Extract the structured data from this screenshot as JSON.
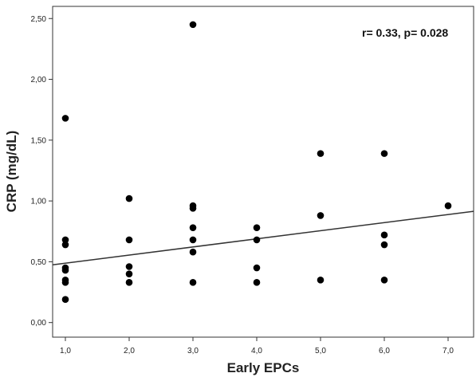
{
  "chart_data": {
    "type": "scatter",
    "xlabel": "Early EPCs",
    "ylabel": "CRP (mg/dL)",
    "annotation": "r= 0.33, p= 0.028",
    "xlim": [
      0.8,
      7.4
    ],
    "ylim": [
      -0.12,
      2.6
    ],
    "x_ticks": [
      1,
      2,
      3,
      4,
      5,
      6,
      7
    ],
    "x_tick_labels": [
      "1,0",
      "2,0",
      "3,0",
      "4,0",
      "5,0",
      "6,0",
      "7,0"
    ],
    "y_ticks": [
      0,
      0.5,
      1.0,
      1.5,
      2.0,
      2.5
    ],
    "y_tick_labels": [
      "0,00",
      "0,50",
      "1,00",
      "1,50",
      "2,00",
      "2,50"
    ],
    "grid": false,
    "marker_color": "#000000",
    "points": [
      {
        "x": 1,
        "y": 1.68
      },
      {
        "x": 1,
        "y": 0.68
      },
      {
        "x": 1,
        "y": 0.64
      },
      {
        "x": 1,
        "y": 0.45
      },
      {
        "x": 1,
        "y": 0.43
      },
      {
        "x": 1,
        "y": 0.35
      },
      {
        "x": 1,
        "y": 0.33
      },
      {
        "x": 1,
        "y": 0.19
      },
      {
        "x": 2,
        "y": 1.02
      },
      {
        "x": 2,
        "y": 0.68
      },
      {
        "x": 2,
        "y": 0.46
      },
      {
        "x": 2,
        "y": 0.4
      },
      {
        "x": 2,
        "y": 0.33
      },
      {
        "x": 3,
        "y": 2.45
      },
      {
        "x": 3,
        "y": 0.96
      },
      {
        "x": 3,
        "y": 0.94
      },
      {
        "x": 3,
        "y": 0.78
      },
      {
        "x": 3,
        "y": 0.68
      },
      {
        "x": 3,
        "y": 0.58
      },
      {
        "x": 3,
        "y": 0.33
      },
      {
        "x": 4,
        "y": 0.78
      },
      {
        "x": 4,
        "y": 0.68
      },
      {
        "x": 4,
        "y": 0.45
      },
      {
        "x": 4,
        "y": 0.33
      },
      {
        "x": 5,
        "y": 1.39
      },
      {
        "x": 5,
        "y": 0.88
      },
      {
        "x": 5,
        "y": 0.35
      },
      {
        "x": 6,
        "y": 1.39
      },
      {
        "x": 6,
        "y": 0.72
      },
      {
        "x": 6,
        "y": 0.64
      },
      {
        "x": 6,
        "y": 0.35
      },
      {
        "x": 7,
        "y": 0.96
      }
    ],
    "fit_line": {
      "type": "linear",
      "x": [
        0.8,
        7.4
      ],
      "y": [
        0.475,
        0.915
      ],
      "color": "#333333"
    }
  }
}
